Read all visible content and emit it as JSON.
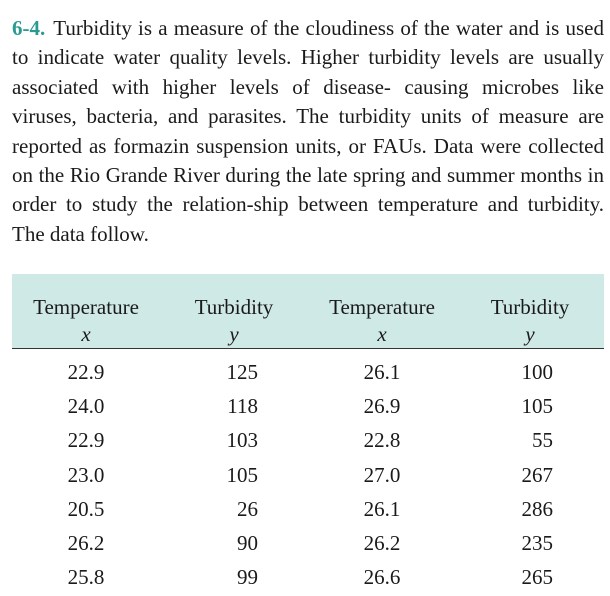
{
  "problem": {
    "number": "6-4.",
    "text": "Turbidity is a measure of the cloudiness of the water and is used to indicate water quality levels. Higher turbidity levels are usually associated with higher levels of disease- causing microbes like viruses, bacteria, and parasites. The turbidity units of measure are reported as formazin suspension units, or FAUs. Data were collected on the Rio Grande River during the late spring and summer months in order to study the relation-ship between temperature and turbidity. The data follow."
  },
  "table": {
    "headers": [
      "Temperature",
      "Turbidity",
      "Temperature",
      "Turbidity"
    ],
    "variables": [
      "x",
      "y",
      "x",
      "y"
    ],
    "rows": [
      [
        "22.9",
        "125",
        "26.1",
        "100"
      ],
      [
        "24.0",
        "118",
        "26.9",
        "105"
      ],
      [
        "22.9",
        "103",
        "22.8",
        "55"
      ],
      [
        "23.0",
        "105",
        "27.0",
        "267"
      ],
      [
        "20.5",
        "26",
        "26.1",
        "286"
      ],
      [
        "26.2",
        "90",
        "26.2",
        "235"
      ],
      [
        "25.8",
        "99",
        "26.6",
        "265"
      ]
    ]
  },
  "colors": {
    "accent": "#2a9a93",
    "header_background": "#cfe9e7"
  }
}
